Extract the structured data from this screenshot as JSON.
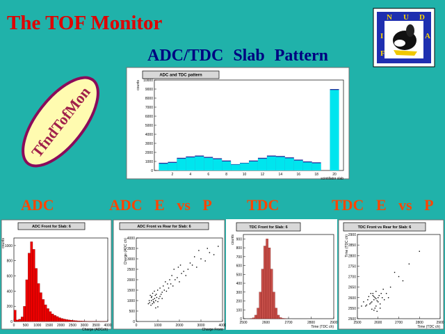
{
  "title": "The TOF Monitor",
  "subtitle": "ADC/TDC Slab Pattern",
  "badge": "TfndTofMon",
  "logo": {
    "letters": [
      "F",
      "I",
      "N",
      "U",
      "D",
      "A"
    ]
  },
  "sections": [
    "ADC",
    "ADC E vs P",
    "TDC",
    "TDC E vs P"
  ],
  "chart_data": [
    {
      "type": "bar",
      "title": "ADC and TDC pattern",
      "xlabel": "scintillator slab",
      "ylabel": "counts",
      "x": [
        1,
        2,
        3,
        4,
        5,
        6,
        7,
        8,
        9,
        10,
        11,
        12,
        13,
        14,
        15,
        16,
        17,
        18,
        19,
        20
      ],
      "series": [
        {
          "color": "#2a2a9a",
          "values": [
            850,
            950,
            1400,
            1550,
            1650,
            1500,
            1350,
            1100,
            700,
            850,
            1100,
            1400,
            1650,
            1600,
            1450,
            1200,
            1000,
            900,
            0,
            9000
          ]
        },
        {
          "color": "#00e5ee",
          "values": [
            750,
            850,
            1300,
            1450,
            1550,
            1400,
            1250,
            1000,
            650,
            800,
            1000,
            1300,
            1550,
            1500,
            1350,
            1100,
            900,
            800,
            0,
            8900
          ]
        }
      ],
      "xlim": [
        0,
        21
      ],
      "xticks": [
        2,
        4,
        6,
        8,
        10,
        12,
        14,
        16,
        18,
        20
      ],
      "ylim": [
        0,
        10000
      ],
      "yticks": [
        0,
        1000,
        2000,
        3000,
        4000,
        5000,
        6000,
        7000,
        8000,
        9000,
        10000
      ]
    },
    {
      "type": "histogram",
      "title": "ADC Front for Slab: 6",
      "xlabel": "Charge (ADCch)",
      "ylabel": "counts",
      "bins": [
        0,
        100,
        200,
        300,
        400,
        500,
        600,
        700,
        800,
        900,
        1000,
        1100,
        1200,
        1300,
        1400,
        1500,
        1600,
        1700,
        1800,
        1900,
        2000,
        2100,
        2200,
        2300,
        2400,
        2500,
        2600,
        2700,
        2800,
        2900,
        3000,
        3100,
        3200,
        3300,
        3400,
        3500,
        3600,
        3700,
        3800,
        3900,
        4000
      ],
      "counts": [
        150,
        20,
        30,
        60,
        200,
        550,
        900,
        1050,
        950,
        700,
        500,
        380,
        290,
        220,
        170,
        130,
        100,
        80,
        65,
        50,
        40,
        32,
        26,
        20,
        16,
        13,
        10,
        8,
        6,
        5,
        4,
        3,
        3,
        2,
        2,
        1,
        1,
        1,
        1,
        1
      ],
      "color": "#ee0000",
      "xlim": [
        0,
        4000
      ],
      "xticks": [
        0,
        500,
        1000,
        1500,
        2000,
        2500,
        3000,
        3500,
        4000
      ],
      "ylim": [
        0,
        1100
      ],
      "yticks": [
        0,
        200,
        400,
        600,
        800,
        1000
      ]
    },
    {
      "type": "scatter",
      "title": "ADC Front vs Rear for Slab: 6",
      "xlabel": "Charge Front",
      "ylabel": "Charge (ADC ch)",
      "x": [
        620,
        700,
        750,
        800,
        850,
        900,
        680,
        720,
        780,
        820,
        950,
        1000,
        600,
        560,
        880,
        930,
        1050,
        1100,
        760,
        840,
        700,
        990,
        1150,
        1200,
        1300,
        1250,
        1400,
        1500,
        1350,
        1600,
        1700,
        1800,
        1650,
        1900,
        2000,
        2100,
        2200,
        2300,
        1950,
        2400,
        2500,
        2600,
        2800,
        3000,
        3200,
        2700,
        3400,
        3600,
        1450,
        1550,
        1100,
        1000,
        900,
        650,
        1750,
        2050,
        2900,
        3300,
        3800,
        1200
      ],
      "y": [
        900,
        1000,
        850,
        950,
        1100,
        1000,
        780,
        1200,
        1050,
        900,
        1150,
        950,
        1000,
        850,
        1250,
        1300,
        1100,
        1200,
        1350,
        1450,
        1150,
        1500,
        1300,
        1400,
        1500,
        1700,
        1450,
        1600,
        1900,
        1800,
        1700,
        2000,
        2200,
        2100,
        1900,
        2300,
        2400,
        2200,
        2600,
        2500,
        2800,
        2700,
        2600,
        3000,
        2900,
        3100,
        3300,
        3200,
        1800,
        2000,
        1600,
        700,
        650,
        1250,
        2500,
        2700,
        3400,
        3500,
        3600,
        1100
      ],
      "color": "#000000",
      "xlim": [
        0,
        4000
      ],
      "xticks": [
        0,
        1000,
        2000,
        3000,
        4000
      ],
      "ylim": [
        0,
        4000
      ],
      "yticks": [
        0,
        500,
        1000,
        1500,
        2000,
        2500,
        3000,
        3500,
        4000
      ]
    },
    {
      "type": "histogram",
      "title": "TDC Front for Slab: 6",
      "xlabel": "Time (TDC ch)",
      "ylabel": "counts",
      "bins": [
        2500,
        2510,
        2520,
        2530,
        2540,
        2550,
        2560,
        2570,
        2580,
        2590,
        2600,
        2610,
        2620,
        2630,
        2640,
        2650,
        2660,
        2670,
        2680,
        2690,
        2700,
        2710,
        2720,
        2730,
        2740,
        2750,
        2760,
        2770,
        2780,
        2790,
        2800,
        2810,
        2820,
        2830,
        2840,
        2850,
        2860,
        2870,
        2880,
        2890,
        2900
      ],
      "counts": [
        0,
        0,
        0,
        2,
        10,
        40,
        120,
        300,
        560,
        820,
        900,
        800,
        560,
        300,
        120,
        40,
        12,
        4,
        1,
        0,
        0,
        0,
        0,
        0,
        0,
        0,
        0,
        0,
        0,
        0,
        0,
        0,
        0,
        0,
        0,
        0,
        0,
        0,
        0,
        0
      ],
      "color": "#c8504a",
      "xlim": [
        2500,
        2900
      ],
      "xticks": [
        2500,
        2600,
        2700,
        2800,
        2900
      ],
      "ylim": [
        0,
        950
      ],
      "yticks": [
        0,
        100,
        200,
        300,
        400,
        500,
        600,
        700,
        800,
        900
      ]
    },
    {
      "type": "scatter",
      "title": "TDC Front vs Rear for Slab: 6",
      "xlabel": "Time (TDC ch)",
      "ylabel": "Time (TDC ch)",
      "x": [
        2560,
        2570,
        2580,
        2590,
        2600,
        2575,
        2585,
        2565,
        2595,
        2605,
        2550,
        2610,
        2620,
        2540,
        2580,
        2590,
        2570,
        2600,
        2615,
        2555,
        2545,
        2625,
        2630,
        2585,
        2575,
        2640,
        2660,
        2700,
        2720,
        2680,
        2750,
        2800,
        2650,
        2530,
        2520,
        2610,
        2595,
        2565,
        2590,
        2580
      ],
      "y": [
        2570,
        2580,
        2590,
        2560,
        2600,
        2620,
        2550,
        2575,
        2585,
        2610,
        2590,
        2570,
        2600,
        2560,
        2540,
        2630,
        2545,
        2580,
        2620,
        2605,
        2565,
        2640,
        2590,
        2600,
        2610,
        2620,
        2650,
        2700,
        2680,
        2720,
        2760,
        2820,
        2600,
        2580,
        2560,
        2550,
        2535,
        2620,
        2595,
        2605
      ],
      "color": "#000000",
      "xlim": [
        2500,
        2900
      ],
      "xticks": [
        2500,
        2600,
        2700,
        2800,
        2900
      ],
      "ylim": [
        2500,
        2900
      ],
      "yticks": [
        2500,
        2550,
        2600,
        2650,
        2700,
        2750,
        2800,
        2850,
        2900
      ]
    }
  ]
}
